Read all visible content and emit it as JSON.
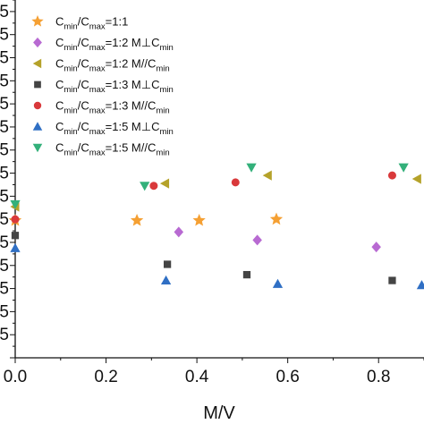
{
  "chart_data": {
    "type": "scatter",
    "xlabel": "M/V",
    "ylabel": "",
    "xlim": [
      0,
      0.9
    ],
    "ylim": [
      0,
      1.55
    ],
    "x_ticks": [
      "0.0",
      "0.2",
      "0.4",
      "0.6",
      "0.8"
    ],
    "x_tick_values": [
      0.0,
      0.2,
      0.4,
      0.6,
      0.8
    ],
    "grid": false,
    "legend_position": "top-left",
    "series": [
      {
        "label": {
          "main": "C",
          "sub1": "min",
          "mid": "/C",
          "sub2": "max",
          "tail": "=1:1",
          "sub3": ""
        },
        "marker": "star",
        "color": "#f5a033",
        "points": [
          [
            0.0,
            0.595
          ],
          [
            0.268,
            0.595
          ],
          [
            0.405,
            0.595
          ],
          [
            0.575,
            0.6
          ]
        ]
      },
      {
        "label": {
          "main": "C",
          "sub1": "min",
          "mid": "/C",
          "sub2": "max",
          "tail": "=1:2 M⊥C",
          "sub3": "min"
        },
        "marker": "diamond",
        "color": "#b86ad2",
        "points": [
          [
            0.36,
            0.545
          ],
          [
            0.533,
            0.51
          ],
          [
            0.795,
            0.48
          ]
        ]
      },
      {
        "label": {
          "main": "C",
          "sub1": "min",
          "mid": "/C",
          "sub2": "max",
          "tail": "=1:2 M//C",
          "sub3": "min"
        },
        "marker": "triangle-left",
        "color": "#b5a22a",
        "points": [
          [
            0.0,
            0.655
          ],
          [
            0.33,
            0.755
          ],
          [
            0.556,
            0.79
          ],
          [
            0.885,
            0.775
          ]
        ]
      },
      {
        "label": {
          "main": "C",
          "sub1": "min",
          "mid": "/C",
          "sub2": "max",
          "tail": "=1:3 M⊥C",
          "sub3": "min"
        },
        "marker": "square",
        "color": "#444444",
        "points": [
          [
            0.0,
            0.53
          ],
          [
            0.335,
            0.405
          ],
          [
            0.51,
            0.36
          ],
          [
            0.83,
            0.335
          ]
        ]
      },
      {
        "label": {
          "main": "C",
          "sub1": "min",
          "mid": "/C",
          "sub2": "max",
          "tail": "=1:3 M//C",
          "sub3": "min"
        },
        "marker": "circle",
        "color": "#d9393b",
        "points": [
          [
            0.0,
            0.6
          ],
          [
            0.305,
            0.745
          ],
          [
            0.485,
            0.76
          ],
          [
            0.83,
            0.79
          ]
        ]
      },
      {
        "label": {
          "main": "C",
          "sub1": "min",
          "mid": "/C",
          "sub2": "max",
          "tail": "=1:5 M⊥C",
          "sub3": "min"
        },
        "marker": "triangle-up",
        "color": "#2f6fc4",
        "points": [
          [
            0.0,
            0.475
          ],
          [
            0.332,
            0.335
          ],
          [
            0.578,
            0.32
          ],
          [
            0.895,
            0.315
          ]
        ]
      },
      {
        "label": {
          "main": "C",
          "sub1": "min",
          "mid": "/C",
          "sub2": "max",
          "tail": "=1:5 M//C",
          "sub3": "min"
        },
        "marker": "triangle-down",
        "color": "#33b07a",
        "points": [
          [
            0.0,
            0.665
          ],
          [
            0.285,
            0.745
          ],
          [
            0.52,
            0.825
          ],
          [
            0.855,
            0.825
          ]
        ]
      }
    ]
  }
}
